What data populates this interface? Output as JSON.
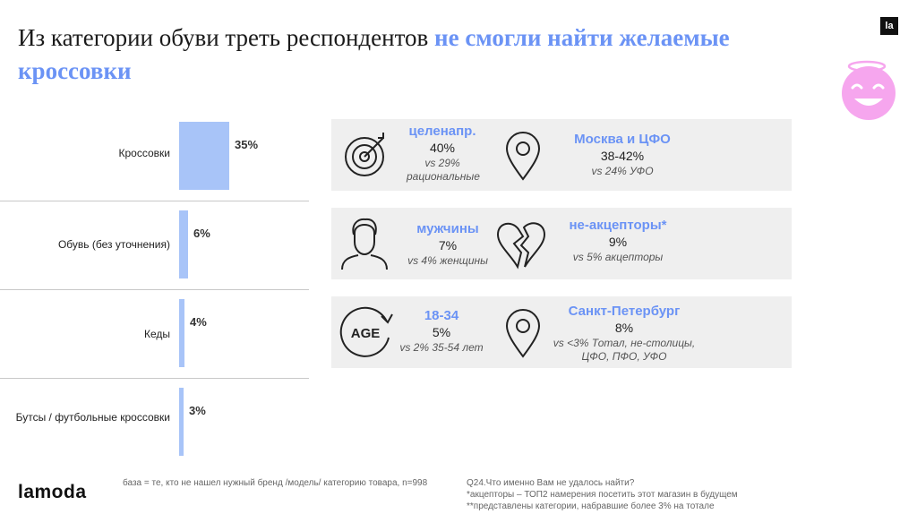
{
  "title": {
    "part1": "Из категории обуви треть респондентов ",
    "part2": "не смогли найти желаемые кроссовки"
  },
  "brand": {
    "badge": "la",
    "logo": "lamoda"
  },
  "chart_data": {
    "type": "bar",
    "orientation": "horizontal",
    "categories": [
      "Кроссовки",
      "Обувь (без уточнения)",
      "Кеды",
      "Бутсы / футбольные кроссовки"
    ],
    "values": [
      35,
      6,
      4,
      3
    ],
    "value_labels": [
      "35%",
      "6%",
      "4%",
      "3%"
    ],
    "xlim": [
      0,
      100
    ]
  },
  "panels": [
    {
      "left": {
        "icon": "target-icon",
        "key": "целенапр.",
        "value": "40%",
        "vs": "vs 29% рациональные"
      },
      "right": {
        "icon": "map-pin-icon",
        "key": "Москва и ЦФО",
        "value": "38-42%",
        "vs": "vs 24% УФО"
      }
    },
    {
      "left": {
        "icon": "man-icon",
        "key": "мужчины",
        "value": "7%",
        "vs": "vs 4% женщины"
      },
      "right": {
        "icon": "broken-heart-icon",
        "key": "не-акцепторы*",
        "value": "9%",
        "vs": "vs 5% акцепторы"
      }
    },
    {
      "left": {
        "icon": "age-icon",
        "icon_text": "AGE",
        "key": "18-34",
        "value": "5%",
        "vs": "vs 2% 35-54 лет"
      },
      "right": {
        "icon": "map-pin-icon",
        "key": "Санкт-Петербург",
        "value": "8%",
        "vs": "vs <3% Тотал, не-столицы, ЦФО, ПФО, УФО"
      }
    }
  ],
  "footnotes": {
    "base": "база = те, кто не нашел нужный бренд /модель/ категорию товара, n=998",
    "q1": "Q24.Что именно Вам не удалось найти?",
    "q2": "*акцепторы – ТОП2 намерения посетить этот магазин в будущем",
    "q3": "**представлены категории, набравшие более 3% на тотале"
  },
  "colors": {
    "accent": "#6b93f5",
    "bar": "#a8c4f8",
    "panel": "#efefef",
    "smiley": "#f6a6ee"
  }
}
